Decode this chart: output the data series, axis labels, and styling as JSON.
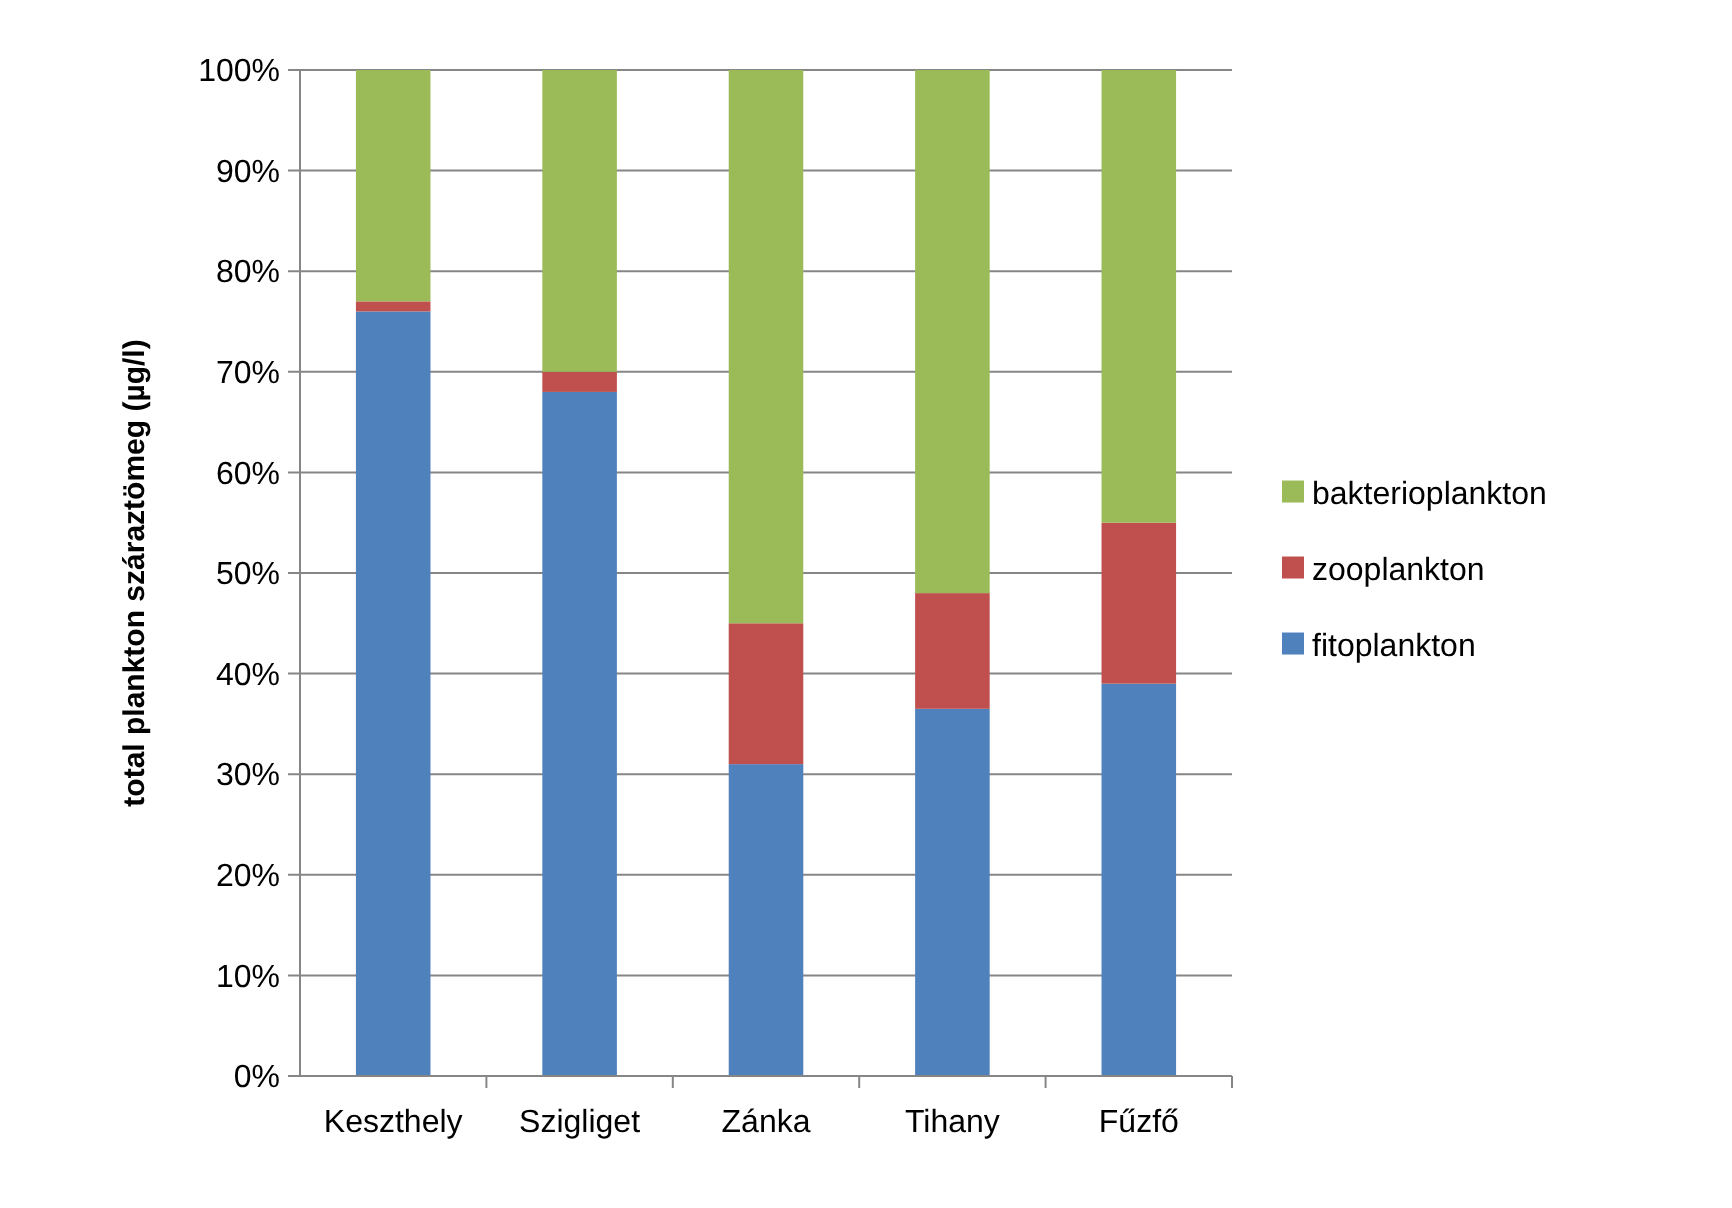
{
  "chart_data": {
    "type": "bar",
    "stacked": true,
    "ylabel": "total plankton száraztömeg (µg/l)",
    "categories": [
      "Keszthely",
      "Szigliget",
      "Zánka",
      "Tihany",
      "Fűzfő"
    ],
    "series": [
      {
        "name": "fitoplankton",
        "color": "#4f81bd",
        "values": [
          76,
          68,
          31,
          36.5,
          39
        ]
      },
      {
        "name": "zooplankton",
        "color": "#c0504d",
        "values": [
          1,
          2,
          14,
          11.5,
          16
        ]
      },
      {
        "name": "bakterioplankton",
        "color": "#9bbb59",
        "values": [
          23,
          30,
          55,
          52,
          45
        ]
      }
    ],
    "ylim": [
      0,
      100
    ],
    "yticks": [
      {
        "value": 0,
        "label": "0%"
      },
      {
        "value": 10,
        "label": "10%"
      },
      {
        "value": 20,
        "label": "20%"
      },
      {
        "value": 30,
        "label": "30%"
      },
      {
        "value": 40,
        "label": "40%"
      },
      {
        "value": 50,
        "label": "50%"
      },
      {
        "value": 60,
        "label": "60%"
      },
      {
        "value": 70,
        "label": "70%"
      },
      {
        "value": 80,
        "label": "80%"
      },
      {
        "value": 90,
        "label": "90%"
      },
      {
        "value": 100,
        "label": "100%"
      }
    ],
    "grid": "y",
    "legend": "right"
  }
}
